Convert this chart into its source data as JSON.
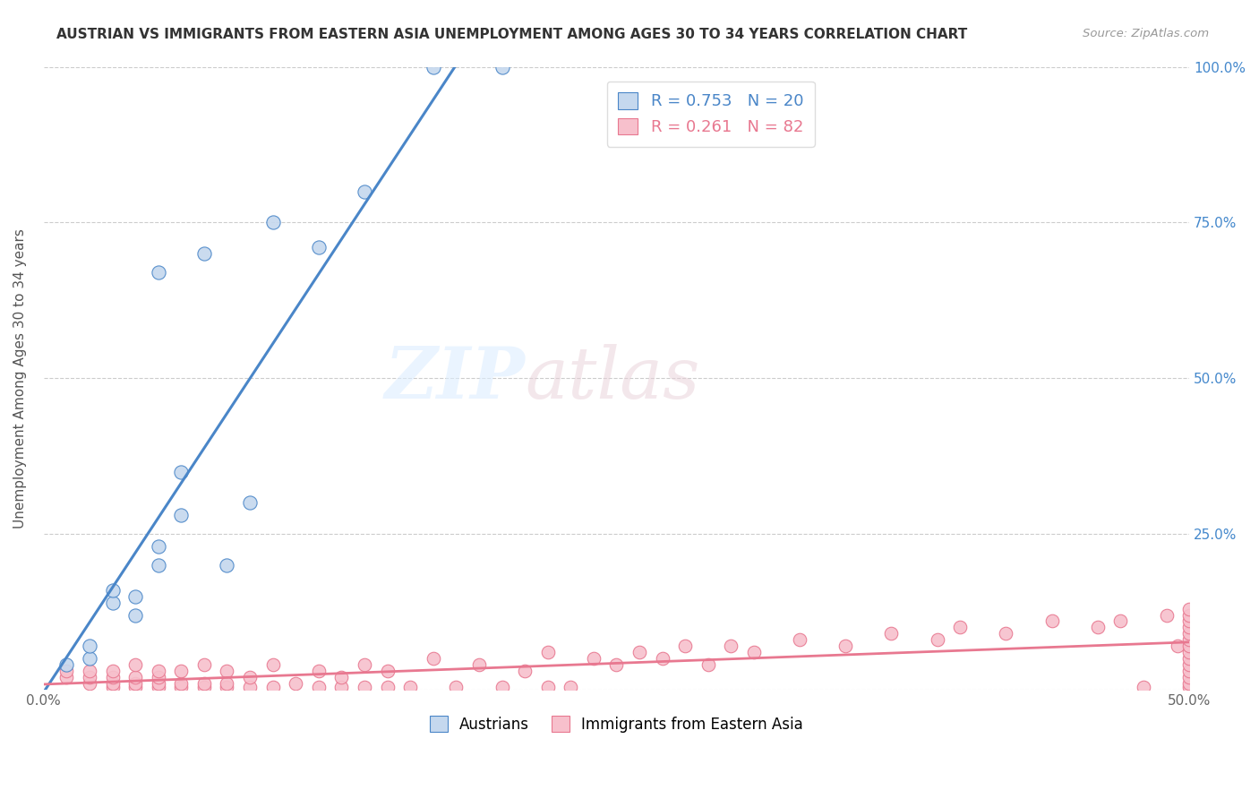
{
  "title": "AUSTRIAN VS IMMIGRANTS FROM EASTERN ASIA UNEMPLOYMENT AMONG AGES 30 TO 34 YEARS CORRELATION CHART",
  "source": "Source: ZipAtlas.com",
  "ylabel": "Unemployment Among Ages 30 to 34 years",
  "xlim": [
    0.0,
    0.5
  ],
  "ylim": [
    0.0,
    1.0
  ],
  "xticks": [
    0.0,
    0.1,
    0.2,
    0.3,
    0.4,
    0.5
  ],
  "yticks": [
    0.0,
    0.25,
    0.5,
    0.75,
    1.0
  ],
  "xticklabels": [
    "0.0%",
    "",
    "",
    "",
    "",
    "50.0%"
  ],
  "yticklabels_right": [
    "",
    "25.0%",
    "50.0%",
    "75.0%",
    "100.0%"
  ],
  "legend_labels": [
    "Austrians",
    "Immigrants from Eastern Asia"
  ],
  "blue_R": 0.753,
  "blue_N": 20,
  "pink_R": 0.261,
  "pink_N": 82,
  "blue_color": "#c5d8ee",
  "pink_color": "#f7c0cc",
  "blue_line_color": "#4a86c8",
  "pink_line_color": "#e87890",
  "watermark_zip": "ZIP",
  "watermark_atlas": "atlas",
  "blue_scatter_x": [
    0.01,
    0.02,
    0.02,
    0.03,
    0.03,
    0.04,
    0.04,
    0.05,
    0.05,
    0.05,
    0.06,
    0.06,
    0.07,
    0.08,
    0.09,
    0.1,
    0.12,
    0.14,
    0.17,
    0.2
  ],
  "blue_scatter_y": [
    0.04,
    0.05,
    0.07,
    0.14,
    0.16,
    0.12,
    0.15,
    0.2,
    0.23,
    0.67,
    0.28,
    0.35,
    0.7,
    0.2,
    0.3,
    0.75,
    0.71,
    0.8,
    1.0,
    1.0
  ],
  "pink_scatter_x": [
    0.01,
    0.01,
    0.02,
    0.02,
    0.02,
    0.03,
    0.03,
    0.03,
    0.03,
    0.04,
    0.04,
    0.04,
    0.04,
    0.05,
    0.05,
    0.05,
    0.05,
    0.06,
    0.06,
    0.06,
    0.07,
    0.07,
    0.07,
    0.08,
    0.08,
    0.08,
    0.09,
    0.09,
    0.1,
    0.1,
    0.11,
    0.12,
    0.12,
    0.13,
    0.13,
    0.14,
    0.14,
    0.15,
    0.15,
    0.16,
    0.17,
    0.18,
    0.19,
    0.2,
    0.21,
    0.22,
    0.22,
    0.23,
    0.24,
    0.25,
    0.26,
    0.27,
    0.28,
    0.29,
    0.3,
    0.31,
    0.33,
    0.35,
    0.37,
    0.39,
    0.4,
    0.42,
    0.44,
    0.46,
    0.47,
    0.48,
    0.49,
    0.495,
    0.5,
    0.5,
    0.5,
    0.5,
    0.5,
    0.5,
    0.5,
    0.5,
    0.5,
    0.5,
    0.5,
    0.5,
    0.5,
    0.5
  ],
  "pink_scatter_y": [
    0.02,
    0.03,
    0.01,
    0.02,
    0.03,
    0.005,
    0.01,
    0.02,
    0.03,
    0.005,
    0.01,
    0.02,
    0.04,
    0.005,
    0.01,
    0.02,
    0.03,
    0.005,
    0.01,
    0.03,
    0.005,
    0.01,
    0.04,
    0.005,
    0.01,
    0.03,
    0.005,
    0.02,
    0.005,
    0.04,
    0.01,
    0.005,
    0.03,
    0.005,
    0.02,
    0.005,
    0.04,
    0.005,
    0.03,
    0.005,
    0.05,
    0.005,
    0.04,
    0.005,
    0.03,
    0.005,
    0.06,
    0.005,
    0.05,
    0.04,
    0.06,
    0.05,
    0.07,
    0.04,
    0.07,
    0.06,
    0.08,
    0.07,
    0.09,
    0.08,
    0.1,
    0.09,
    0.11,
    0.1,
    0.11,
    0.005,
    0.12,
    0.07,
    0.005,
    0.01,
    0.02,
    0.03,
    0.04,
    0.05,
    0.06,
    0.07,
    0.08,
    0.09,
    0.1,
    0.11,
    0.12,
    0.13
  ]
}
